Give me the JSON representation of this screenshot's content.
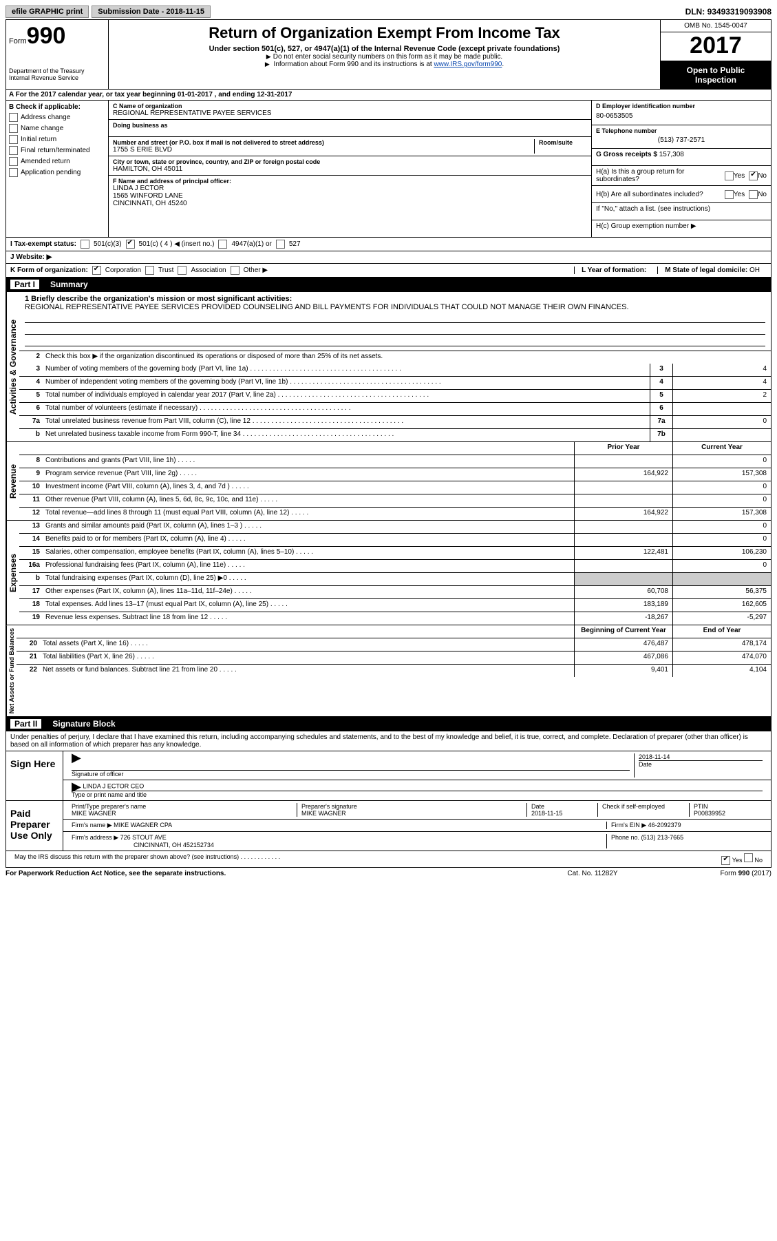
{
  "topbar": {
    "efile": "efile GRAPHIC print",
    "sub_label": "Submission Date - ",
    "sub_date": "2018-11-15",
    "dln_label": "DLN: ",
    "dln": "93493319093908"
  },
  "header": {
    "form_word": "Form",
    "form_num": "990",
    "dept": "Department of the Treasury",
    "irs": "Internal Revenue Service",
    "title": "Return of Organization Exempt From Income Tax",
    "subtitle": "Under section 501(c), 527, or 4947(a)(1) of the Internal Revenue Code (except private foundations)",
    "note1": "Do not enter social security numbers on this form as it may be made public.",
    "note2_pre": "Information about Form 990 and its instructions is at ",
    "note2_link": "www.IRS.gov/form990",
    "omb": "OMB No. 1545-0047",
    "year": "2017",
    "inspect1": "Open to Public",
    "inspect2": "Inspection"
  },
  "sectionA": "A  For the 2017 calendar year, or tax year beginning 01-01-2017   , and ending 12-31-2017",
  "colB": {
    "head": "B Check if applicable:",
    "items": [
      "Address change",
      "Name change",
      "Initial return",
      "Final return/terminated",
      "Amended return",
      "Application pending"
    ]
  },
  "colC": {
    "name_lbl": "C Name of organization",
    "name": "REGIONAL REPRESENTATIVE PAYEE SERVICES",
    "dba_lbl": "Doing business as",
    "addr_lbl": "Number and street (or P.O. box if mail is not delivered to street address)",
    "room_lbl": "Room/suite",
    "addr": "1755 S ERIE BLVD",
    "city_lbl": "City or town, state or province, country, and ZIP or foreign postal code",
    "city": "HAMILTON, OH  45011",
    "f_lbl": "F  Name and address of principal officer:",
    "f_name": "LINDA J ECTOR",
    "f_addr1": "1565 WINFORD LANE",
    "f_addr2": "CINCINNATI, OH  45240"
  },
  "colD": {
    "ein_lbl": "D Employer identification number",
    "ein": "80-0653505",
    "tel_lbl": "E Telephone number",
    "tel": "(513) 737-2571",
    "gross_lbl": "G Gross receipts $ ",
    "gross": "157,308",
    "ha": "H(a)  Is this a group return for subordinates?",
    "hb": "H(b)  Are all subordinates included?",
    "hc_note": "If \"No,\" attach a list. (see instructions)",
    "hc": "H(c)  Group exemption number ▶",
    "yes": "Yes",
    "no": "No"
  },
  "rowI": {
    "lbl": "I  Tax-exempt status:",
    "o1": "501(c)(3)",
    "o2": "501(c) ( 4 ) ◀ (insert no.)",
    "o3": "4947(a)(1) or",
    "o4": "527"
  },
  "rowJ": "J  Website: ▶",
  "rowK": {
    "lbl": "K Form of organization:",
    "o1": "Corporation",
    "o2": "Trust",
    "o3": "Association",
    "o4": "Other ▶",
    "l_lbl": "L Year of formation:",
    "m_lbl": "M State of legal domicile:",
    "m_val": "OH"
  },
  "part1": {
    "num": "Part I",
    "title": "Summary"
  },
  "mission": {
    "lbl": "1 Briefly describe the organization's mission or most significant activities:",
    "text": "REGIONAL REPRESENTATIVE PAYEE SERVICES PROVIDED COUNSELING AND BILL PAYMENTS FOR INDIVIDUALS THAT COULD NOT MANAGE THEIR OWN FINANCES."
  },
  "gov": {
    "vert": "Activities & Governance",
    "l2": "Check this box ▶        if the organization discontinued its operations or disposed of more than 25% of its net assets.",
    "lines": [
      {
        "n": "3",
        "t": "Number of voting members of the governing body (Part VI, line 1a)",
        "b": "3",
        "v": "4"
      },
      {
        "n": "4",
        "t": "Number of independent voting members of the governing body (Part VI, line 1b)",
        "b": "4",
        "v": "4"
      },
      {
        "n": "5",
        "t": "Total number of individuals employed in calendar year 2017 (Part V, line 2a)",
        "b": "5",
        "v": "2"
      },
      {
        "n": "6",
        "t": "Total number of volunteers (estimate if necessary)",
        "b": "6",
        "v": ""
      },
      {
        "n": "7a",
        "t": "Total unrelated business revenue from Part VIII, column (C), line 12",
        "b": "7a",
        "v": "0"
      },
      {
        "n": "b",
        "t": "Net unrelated business taxable income from Form 990-T, line 34",
        "b": "7b",
        "v": ""
      }
    ]
  },
  "cols": {
    "prior": "Prior Year",
    "curr": "Current Year",
    "beg": "Beginning of Current Year",
    "end": "End of Year"
  },
  "rev": {
    "vert": "Revenue",
    "lines": [
      {
        "n": "8",
        "t": "Contributions and grants (Part VIII, line 1h)",
        "p": "",
        "c": "0"
      },
      {
        "n": "9",
        "t": "Program service revenue (Part VIII, line 2g)",
        "p": "164,922",
        "c": "157,308"
      },
      {
        "n": "10",
        "t": "Investment income (Part VIII, column (A), lines 3, 4, and 7d )",
        "p": "",
        "c": "0"
      },
      {
        "n": "11",
        "t": "Other revenue (Part VIII, column (A), lines 5, 6d, 8c, 9c, 10c, and 11e)",
        "p": "",
        "c": "0"
      },
      {
        "n": "12",
        "t": "Total revenue—add lines 8 through 11 (must equal Part VIII, column (A), line 12)",
        "p": "164,922",
        "c": "157,308"
      }
    ]
  },
  "exp": {
    "vert": "Expenses",
    "lines": [
      {
        "n": "13",
        "t": "Grants and similar amounts paid (Part IX, column (A), lines 1–3 )",
        "p": "",
        "c": "0"
      },
      {
        "n": "14",
        "t": "Benefits paid to or for members (Part IX, column (A), line 4)",
        "p": "",
        "c": "0"
      },
      {
        "n": "15",
        "t": "Salaries, other compensation, employee benefits (Part IX, column (A), lines 5–10)",
        "p": "122,481",
        "c": "106,230"
      },
      {
        "n": "16a",
        "t": "Professional fundraising fees (Part IX, column (A), line 11e)",
        "p": "",
        "c": "0"
      },
      {
        "n": "b",
        "t": "Total fundraising expenses (Part IX, column (D), line 25) ▶0",
        "p": "shade",
        "c": "shade"
      },
      {
        "n": "17",
        "t": "Other expenses (Part IX, column (A), lines 11a–11d, 11f–24e)",
        "p": "60,708",
        "c": "56,375"
      },
      {
        "n": "18",
        "t": "Total expenses. Add lines 13–17 (must equal Part IX, column (A), line 25)",
        "p": "183,189",
        "c": "162,605"
      },
      {
        "n": "19",
        "t": "Revenue less expenses. Subtract line 18 from line 12",
        "p": "-18,267",
        "c": "-5,297"
      }
    ]
  },
  "net": {
    "vert": "Net Assets or Fund Balances",
    "lines": [
      {
        "n": "20",
        "t": "Total assets (Part X, line 16)",
        "p": "476,487",
        "c": "478,174"
      },
      {
        "n": "21",
        "t": "Total liabilities (Part X, line 26)",
        "p": "467,086",
        "c": "474,070"
      },
      {
        "n": "22",
        "t": "Net assets or fund balances. Subtract line 21 from line 20",
        "p": "9,401",
        "c": "4,104"
      }
    ]
  },
  "part2": {
    "num": "Part II",
    "title": "Signature Block"
  },
  "sig": {
    "decl": "Under penalties of perjury, I declare that I have examined this return, including accompanying schedules and statements, and to the best of my knowledge and belief, it is true, correct, and complete. Declaration of preparer (other than officer) is based on all information of which preparer has any knowledge.",
    "sign_here": "Sign Here",
    "sig_off": "Signature of officer",
    "date_lbl": "Date",
    "date": "2018-11-14",
    "name_title": "LINDA J ECTOR CEO",
    "name_title_lbl": "Type or print name and title",
    "paid": "Paid Preparer Use Only",
    "prep_name_lbl": "Print/Type preparer's name",
    "prep_name": "MIKE WAGNER",
    "prep_sig_lbl": "Preparer's signature",
    "prep_sig": "MIKE WAGNER",
    "prep_date": "2018-11-15",
    "check_lbl": "Check        if self-employed",
    "ptin_lbl": "PTIN",
    "ptin": "P00839952",
    "firm_name_lbl": "Firm's name      ▶ ",
    "firm_name": "MIKE WAGNER CPA",
    "firm_ein_lbl": "Firm's EIN ▶ ",
    "firm_ein": "46-2092379",
    "firm_addr_lbl": "Firm's address ▶ ",
    "firm_addr": "726 STOUT AVE",
    "firm_city": "CINCINNATI, OH  452152734",
    "phone_lbl": "Phone no. ",
    "phone": "(513) 213-7665",
    "discuss": "May the IRS discuss this return with the preparer shown above? (see instructions)"
  },
  "footer": {
    "left": "For Paperwork Reduction Act Notice, see the separate instructions.",
    "mid": "Cat. No. 11282Y",
    "right": "Form 990 (2017)"
  }
}
